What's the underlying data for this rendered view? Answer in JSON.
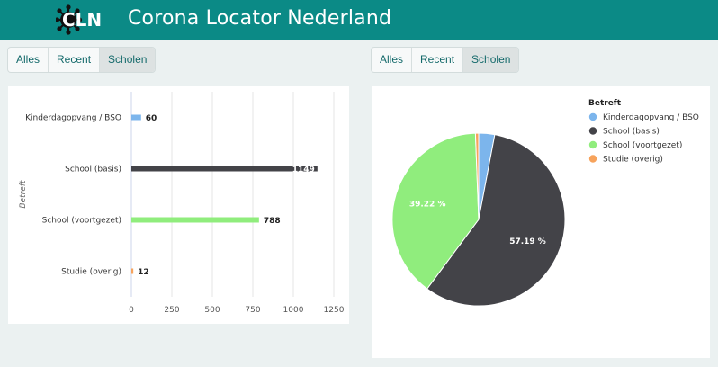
{
  "header": {
    "logo_text": "CLN",
    "title": "Corona Locator Nederland",
    "brand_color": "#0b8a86"
  },
  "filters_left": {
    "buttons": [
      "Alles",
      "Recent",
      "Scholen"
    ],
    "active": "Scholen"
  },
  "filters_right": {
    "buttons": [
      "Alles",
      "Recent",
      "Scholen"
    ],
    "active": "Scholen"
  },
  "chart_data": [
    {
      "type": "bar",
      "orientation": "horizontal",
      "categories": [
        "Kinderdagopvang / BSO",
        "School (basis)",
        "School (voortgezet)",
        "Studie (overig)"
      ],
      "values": [
        60,
        1149,
        788,
        12
      ],
      "colors": [
        "#7cb5ec",
        "#434348",
        "#90ed7d",
        "#f7a35c"
      ],
      "ylabel": "Betreft",
      "xlim": [
        0,
        1250
      ],
      "xticks": [
        0,
        250,
        500,
        750,
        1000,
        1250
      ],
      "grid": true,
      "data_labels": true
    },
    {
      "type": "pie",
      "legend_title": "Betreft",
      "legend_position": "top-right",
      "labels": [
        "Kinderdagopvang / BSO",
        "School (basis)",
        "School (voortgezet)",
        "Studie (overig)"
      ],
      "values": [
        60,
        1149,
        788,
        12
      ],
      "colors": [
        "#7cb5ec",
        "#434348",
        "#90ed7d",
        "#f7a35c"
      ],
      "slice_labels": [
        "",
        "57.19 %",
        "39.22 %",
        ""
      ]
    }
  ]
}
